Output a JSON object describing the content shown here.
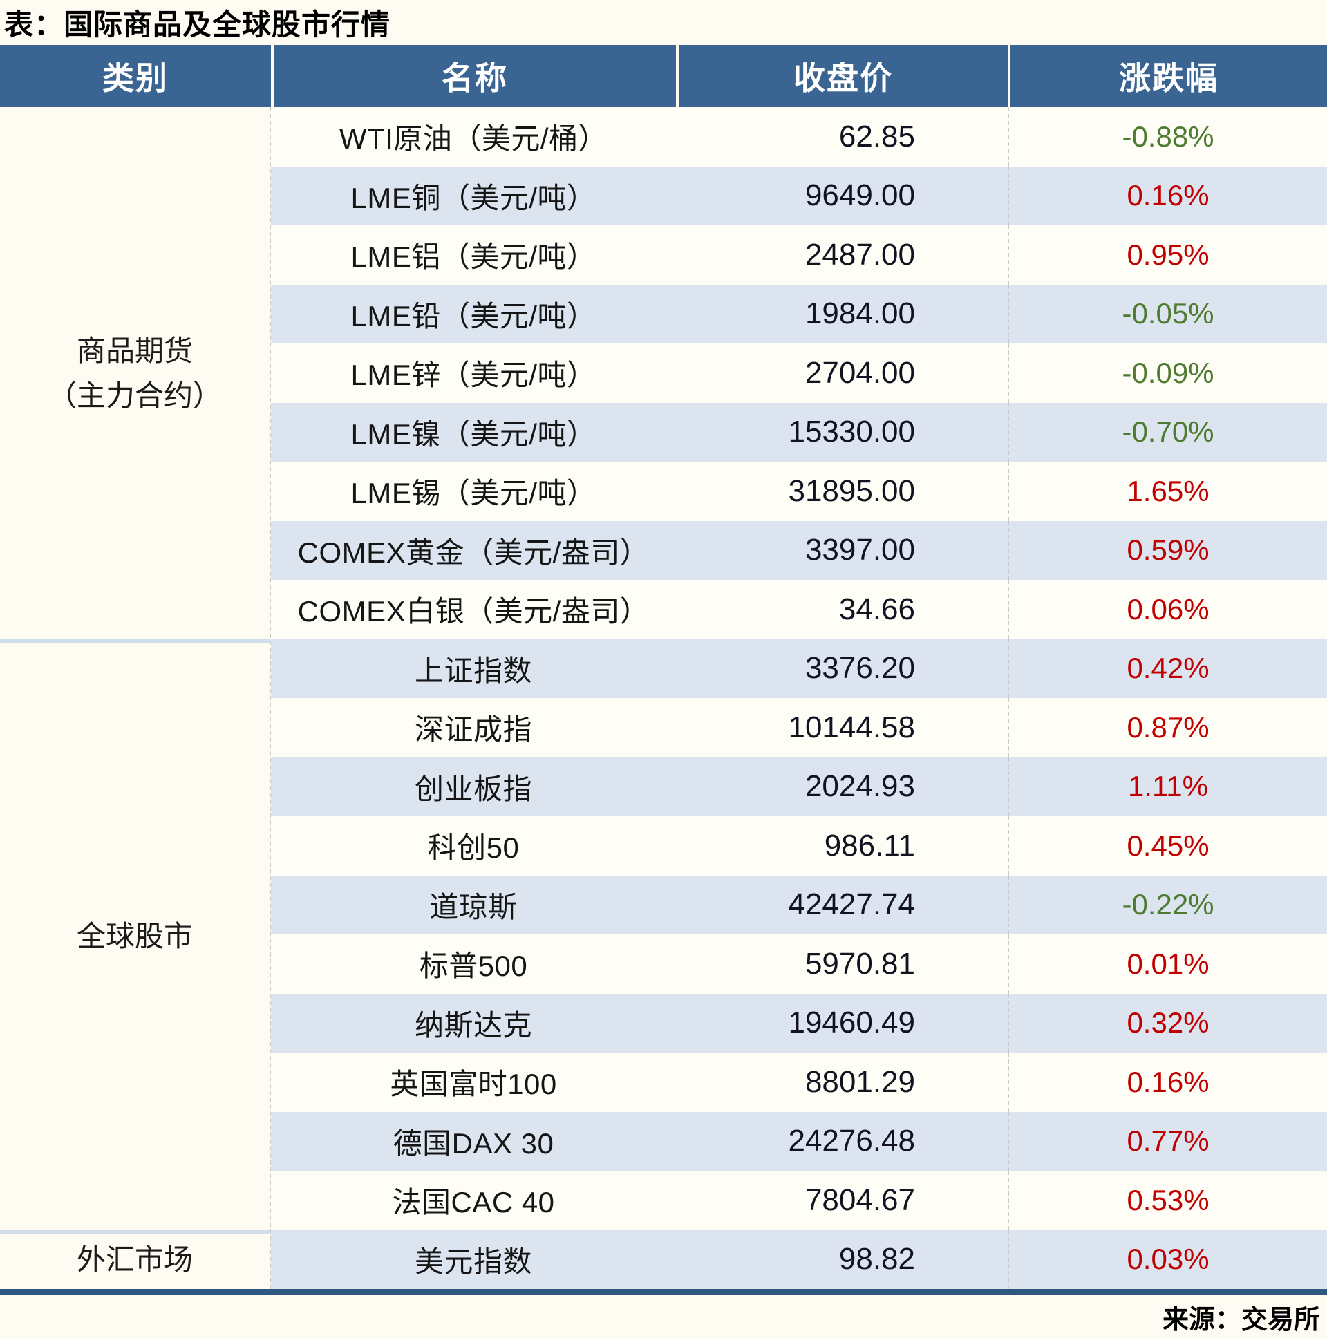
{
  "title": "表：国际商品及全球股市行情",
  "source": "来源：交易所",
  "colors": {
    "header_bg": "#3a6492",
    "row_bg": "#fffef6",
    "row_alt_bg": "#dbe4ef",
    "positive": "#c00000",
    "negative": "#4e7b2f",
    "section_divider": "#d2deeb",
    "bottom_bar": "#2e5880"
  },
  "chart_data": {
    "type": "table",
    "title": "表：国际商品及全球股市行情",
    "columns": [
      "类别",
      "名称",
      "收盘价",
      "涨跌幅"
    ],
    "sections": [
      {
        "category_lines": [
          "商品期货",
          "（主力合约）"
        ],
        "row_span": 9
      },
      {
        "category_lines": [
          "全球股市"
        ],
        "row_span": 10
      },
      {
        "category_lines": [
          "外汇市场"
        ],
        "row_span": 1
      }
    ],
    "rows": [
      {
        "name": "WTI原油（美元/桶）",
        "close": "62.85",
        "change": "-0.88%"
      },
      {
        "name": "LME铜（美元/吨）",
        "close": "9649.00",
        "change": "0.16%"
      },
      {
        "name": "LME铝（美元/吨）",
        "close": "2487.00",
        "change": "0.95%"
      },
      {
        "name": "LME铅（美元/吨）",
        "close": "1984.00",
        "change": "-0.05%"
      },
      {
        "name": "LME锌（美元/吨）",
        "close": "2704.00",
        "change": "-0.09%"
      },
      {
        "name": "LME镍（美元/吨）",
        "close": "15330.00",
        "change": "-0.70%"
      },
      {
        "name": "LME锡（美元/吨）",
        "close": "31895.00",
        "change": "1.65%"
      },
      {
        "name": "COMEX黄金（美元/盎司）",
        "close": "3397.00",
        "change": "0.59%"
      },
      {
        "name": "COMEX白银（美元/盎司）",
        "close": "34.66",
        "change": "0.06%"
      },
      {
        "name": "上证指数",
        "close": "3376.20",
        "change": "0.42%"
      },
      {
        "name": "深证成指",
        "close": "10144.58",
        "change": "0.87%"
      },
      {
        "name": "创业板指",
        "close": "2024.93",
        "change": "1.11%"
      },
      {
        "name": "科创50",
        "close": "986.11",
        "change": "0.45%"
      },
      {
        "name": "道琼斯",
        "close": "42427.74",
        "change": "-0.22%"
      },
      {
        "name": "标普500",
        "close": "5970.81",
        "change": "0.01%"
      },
      {
        "name": "纳斯达克",
        "close": "19460.49",
        "change": "0.32%"
      },
      {
        "name": "英国富时100",
        "close": "8801.29",
        "change": "0.16%"
      },
      {
        "name": "德国DAX 30",
        "close": "24276.48",
        "change": "0.77%"
      },
      {
        "name": "法国CAC 40",
        "close": "7804.67",
        "change": "0.53%"
      },
      {
        "name": "美元指数",
        "close": "98.82",
        "change": "0.03%"
      }
    ],
    "source": "来源：交易所"
  }
}
